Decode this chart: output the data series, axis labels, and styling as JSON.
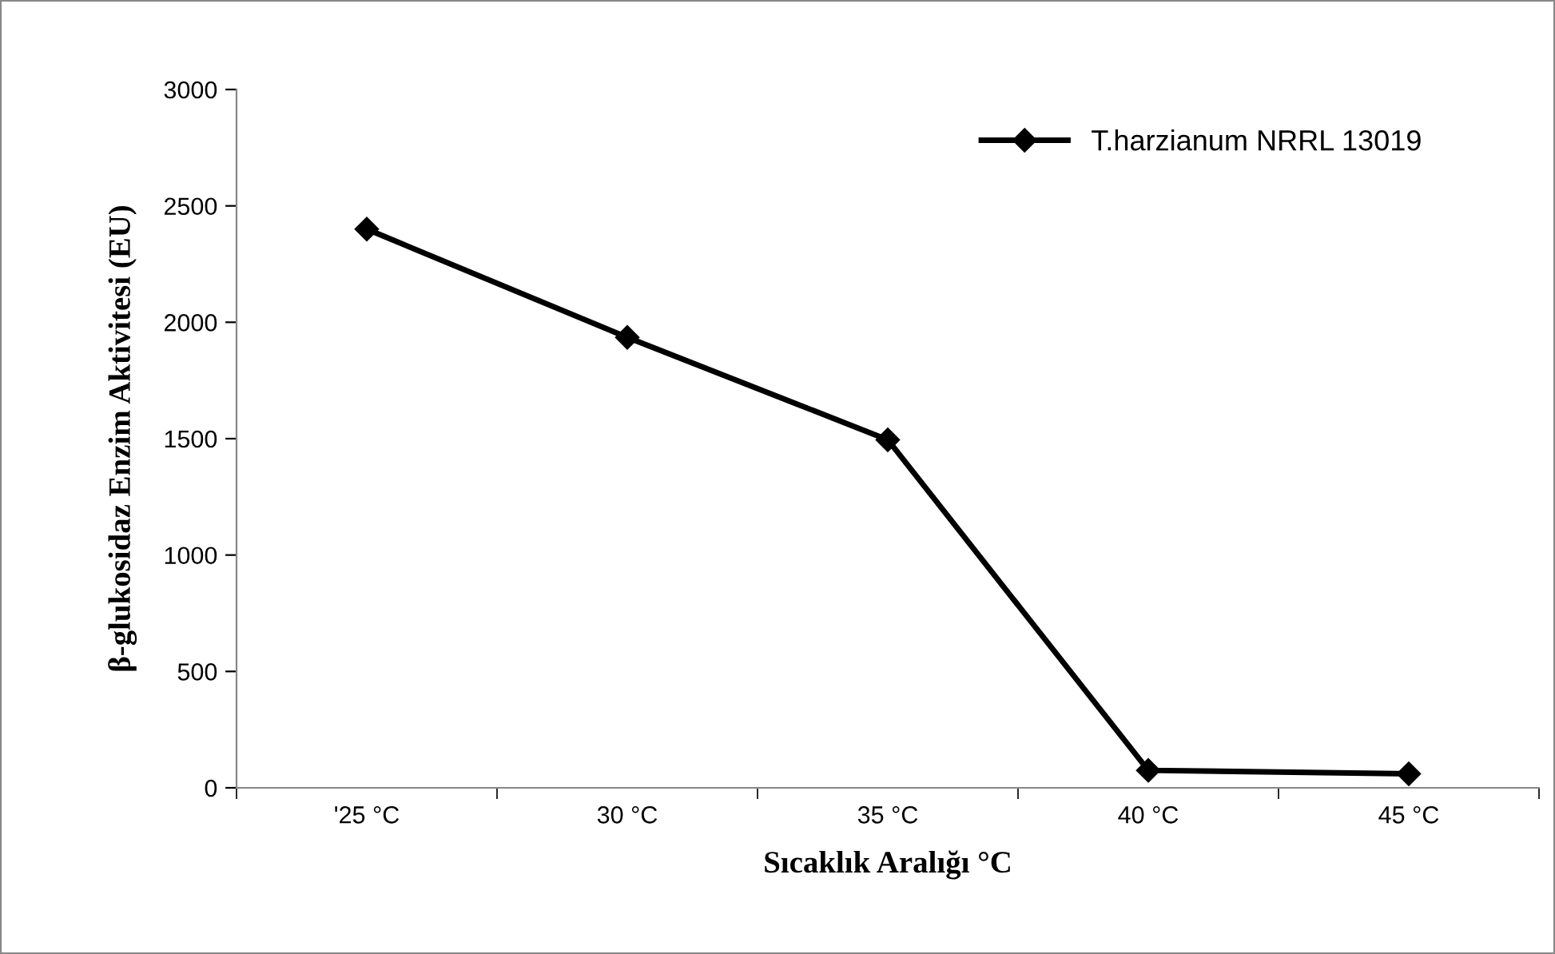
{
  "chart_data": {
    "type": "line",
    "xlabel": "Sıcaklık Aralığı °C",
    "ylabel": "β-glukosidaz Enzim Aktivitesi (EU)",
    "categories": [
      "'25 °C",
      "30 °C",
      "35 °C",
      "40 °C",
      "45 °C"
    ],
    "series": [
      {
        "name": "T.harzianum NRRL 13019",
        "color": "#000000",
        "values": [
          2400,
          1935,
          1495,
          75,
          60
        ]
      }
    ],
    "ylim": [
      0,
      3000
    ],
    "yticks": [
      0,
      500,
      1000,
      1500,
      2000,
      2500,
      3000
    ],
    "marker": "diamond",
    "line_style": "solid",
    "grid": false,
    "legend": "top right"
  }
}
